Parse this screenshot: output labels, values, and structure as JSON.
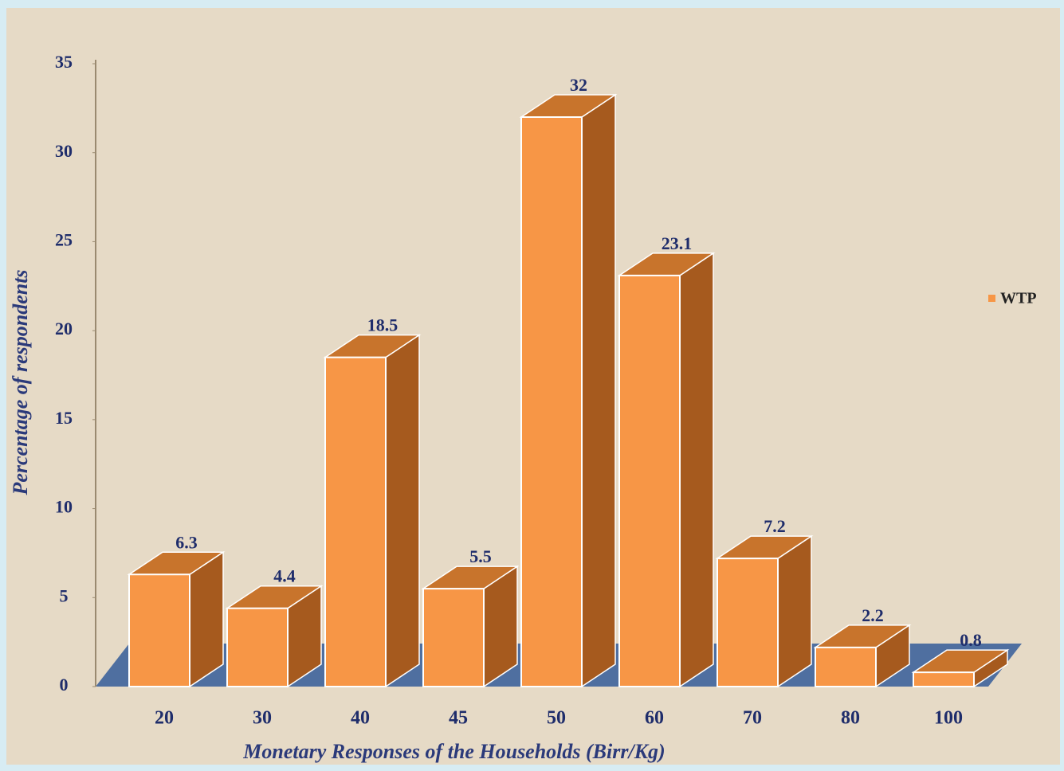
{
  "chart_data": {
    "type": "bar3d",
    "x_label": "Monetary Responses of the Households (Birr/Kg)",
    "y_label": "Percentage of respondents",
    "categories": [
      "20",
      "30",
      "40",
      "45",
      "50",
      "60",
      "70",
      "80",
      "100"
    ],
    "series": [
      {
        "name": "WTP",
        "color": "#f79646",
        "values": [
          6.3,
          4.4,
          18.5,
          5.5,
          32,
          23.1,
          7.2,
          2.2,
          0.8
        ]
      }
    ],
    "ylim": [
      0,
      35
    ],
    "yticks": [
      0,
      5,
      10,
      15,
      20,
      25,
      30,
      35
    ],
    "legend": "right"
  }
}
